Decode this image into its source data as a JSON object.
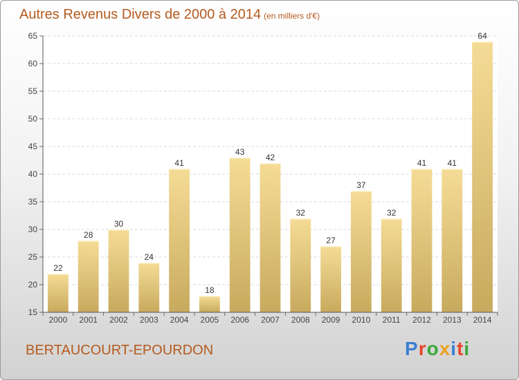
{
  "title": {
    "main": "Autres Revenus Divers de 2000 à 2014",
    "sub": "(en milliers d'€)"
  },
  "location": "BERTAUCOURT-EPOURDON",
  "brand": {
    "text": "Proxiti",
    "letters": [
      {
        "ch": "P",
        "color": "#3a7fd0"
      },
      {
        "ch": "r",
        "color": "#e8462a"
      },
      {
        "ch": "o",
        "color": "#3aa83a"
      },
      {
        "ch": "x",
        "color": "#f0a020"
      },
      {
        "ch": "i",
        "color": "#3a7fd0"
      },
      {
        "ch": "t",
        "color": "#e8462a"
      },
      {
        "ch": "i",
        "color": "#3aa83a"
      }
    ]
  },
  "colors": {
    "bar_top": "#f5dc96",
    "bar_bottom": "#c8aa5e",
    "accent": "#b55a1e"
  },
  "chart_data": {
    "type": "bar",
    "categories": [
      "2000",
      "2001",
      "2002",
      "2003",
      "2004",
      "2005",
      "2006",
      "2007",
      "2008",
      "2009",
      "2010",
      "2011",
      "2012",
      "2013",
      "2014"
    ],
    "values": [
      22,
      28,
      30,
      24,
      41,
      18,
      43,
      42,
      32,
      27,
      37,
      32,
      41,
      41,
      64
    ],
    "ylim": [
      15,
      65
    ],
    "yticks": [
      15,
      20,
      25,
      30,
      35,
      40,
      45,
      50,
      55,
      60,
      65
    ],
    "grid": true
  }
}
